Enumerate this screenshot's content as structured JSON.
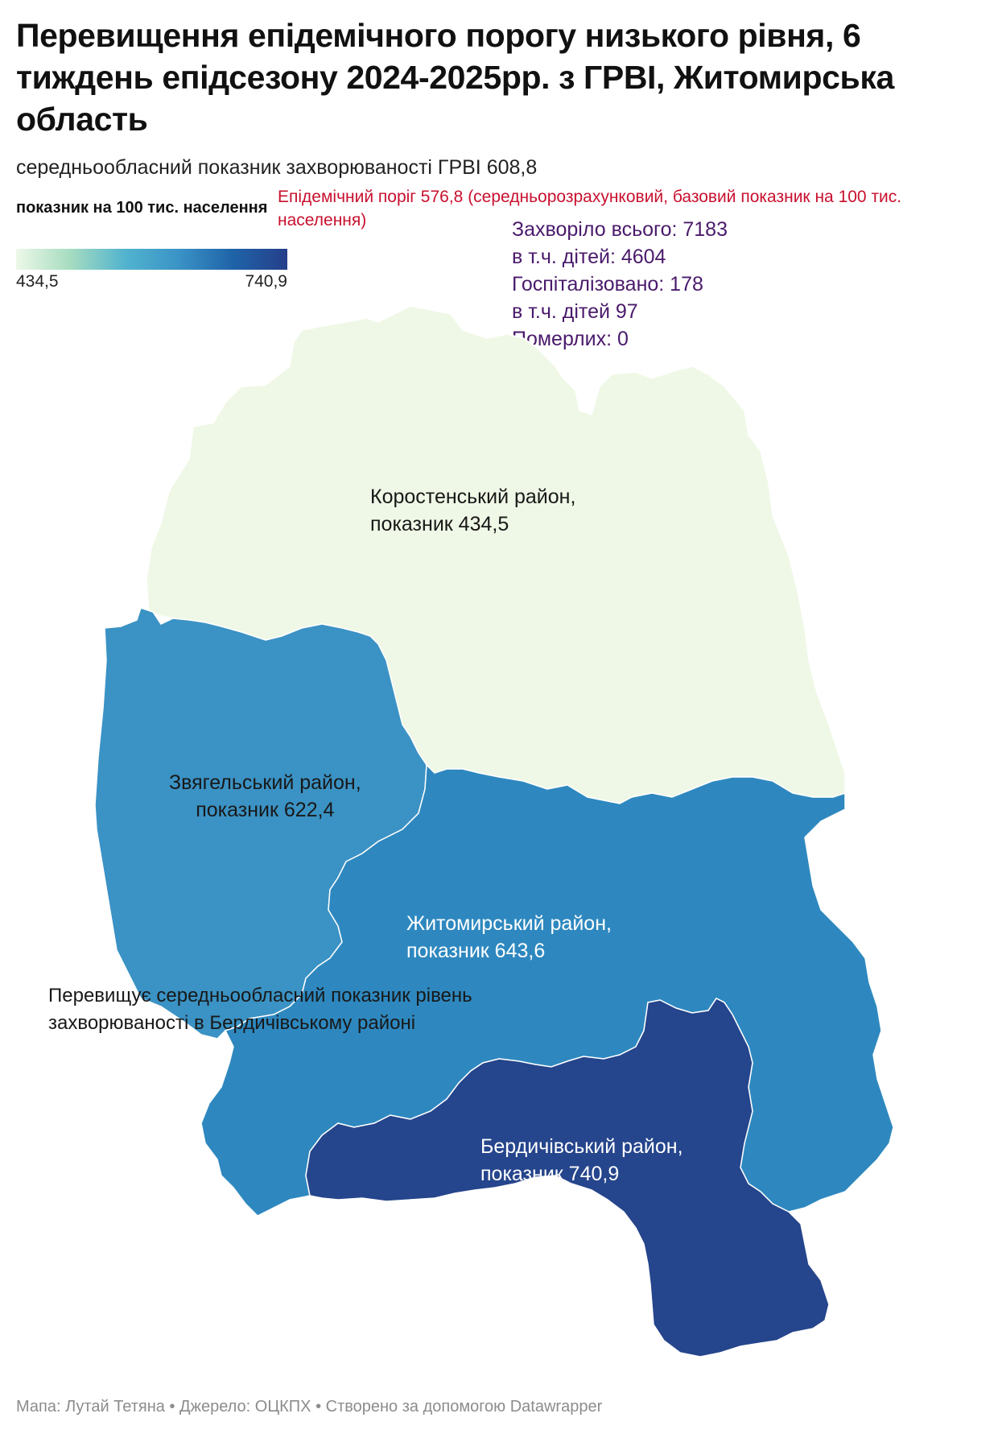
{
  "title": "Перевищення епідемічного порогу низького рівня, 6 тиждень епідсезону 2024-2025рр. з ГРВІ, Житомирська область",
  "subtitle": "середньообласний показник захворюваності ГРВІ  608,8",
  "legend": {
    "title": "показник на 100 тис. населення",
    "min": "434,5",
    "max": "740,9",
    "min_value": 434.5,
    "max_value": 740.9,
    "colors": [
      "#edf8e9",
      "#a6dcc0",
      "#52b4cf",
      "#3a93c6",
      "#1f63a8",
      "#253f8a"
    ]
  },
  "threshold_note": "Епідемічний поріг 576,8 (середньорозрахунковий, базовий показник на 100 тис. населення)",
  "stats": [
    "Захворіло всього: 7183",
    "в т.ч. дітей: 4604",
    "Госпіталізовано: 178",
    "в т.ч. дітей 97",
    "Померлих: 0"
  ],
  "regions": [
    {
      "id": "korosten",
      "name": "Коростенський район,",
      "value_label": "показник 434,5",
      "value": 434.5,
      "color": "#eff8e6"
    },
    {
      "id": "zviahel",
      "name": "Звягельський район,",
      "value_label": "показник  622,4",
      "value": 622.4,
      "color": "#3b92c4"
    },
    {
      "id": "zhytomyr",
      "name": "Житомирський район,",
      "value_label": "показник 643,6",
      "value": 643.6,
      "color": "#2e88bf"
    },
    {
      "id": "berdychiv",
      "name": "Бердичівський район,",
      "value_label": "показник 740,9",
      "value": 740.9,
      "color": "#25458c"
    }
  ],
  "note": "Перевищує середньообласний показник рівень захворюваності в  Бердичівському районі",
  "footer": "Мапа: Лутай Тетяна • Джерело: ОЦКПХ • Створено за допомогою Datawrapper"
}
